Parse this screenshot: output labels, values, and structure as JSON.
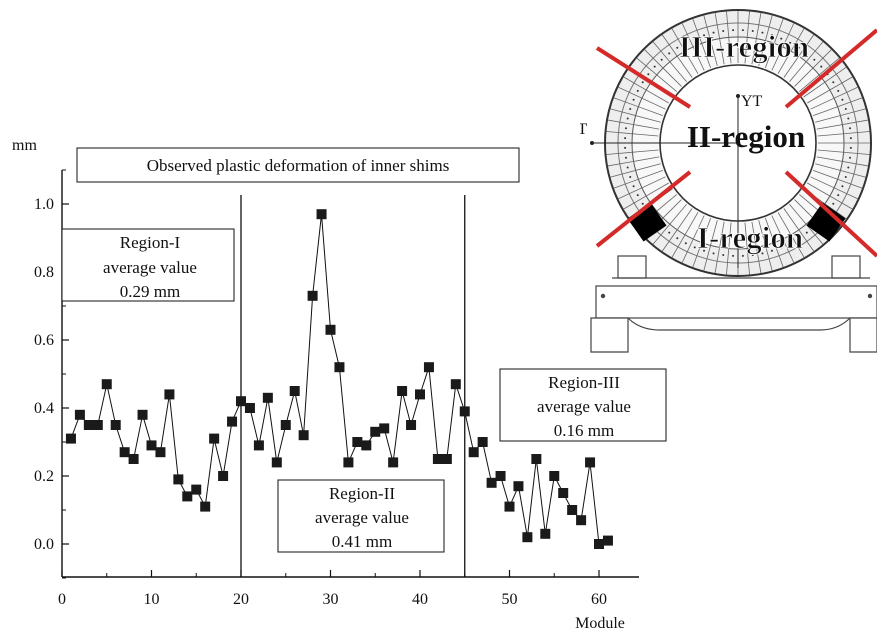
{
  "chart_data": {
    "type": "scatter",
    "title": "Observed plastic deformation of inner shims",
    "xlabel": "Module",
    "ylabel": "mm",
    "xlim": [
      0,
      64
    ],
    "ylim": [
      -0.1,
      1.1
    ],
    "x_ticks": [
      "0",
      "10",
      "20",
      "30",
      "40",
      "50",
      "60"
    ],
    "y_ticks": [
      "0.0",
      "0.2",
      "0.4",
      "0.6",
      "0.8",
      "1.0"
    ],
    "series": [
      {
        "x": [
          1,
          2,
          3,
          4,
          5,
          6,
          7,
          8,
          9,
          10,
          11,
          12,
          13,
          14,
          15,
          16,
          17,
          18,
          19,
          20,
          21,
          22,
          23,
          24,
          25,
          26,
          27,
          28,
          29,
          30,
          31,
          32,
          33,
          34,
          35,
          36,
          37,
          38,
          39,
          40,
          41,
          42,
          43,
          44,
          45,
          46,
          47,
          48,
          49,
          50,
          51,
          52,
          53,
          54,
          55,
          56,
          57,
          58,
          59,
          60,
          61
        ],
        "values": [
          0.31,
          0.38,
          0.35,
          0.35,
          0.47,
          0.35,
          0.27,
          0.25,
          0.38,
          0.29,
          0.27,
          0.44,
          0.19,
          0.14,
          0.16,
          0.11,
          0.31,
          0.2,
          0.36,
          0.42,
          0.4,
          0.29,
          0.43,
          0.24,
          0.35,
          0.45,
          0.32,
          0.73,
          0.97,
          0.63,
          0.52,
          0.24,
          0.3,
          0.29,
          0.33,
          0.34,
          0.24,
          0.45,
          0.35,
          0.44,
          0.52,
          0.25,
          0.25,
          0.47,
          0.39,
          0.27,
          0.3,
          0.18,
          0.2,
          0.11,
          0.17,
          0.02,
          0.25,
          0.03,
          0.2,
          0.15,
          0.1,
          0.07,
          0.24,
          0.0,
          0.01
        ]
      }
    ],
    "region_dividers": [
      20,
      45
    ],
    "annotations": [
      {
        "lines": [
          "Region-I",
          "average value",
          "0.29 mm"
        ]
      },
      {
        "lines": [
          "Region-II",
          "average value",
          "0.41 mm"
        ]
      },
      {
        "lines": [
          "Region-III",
          "average value",
          "0.16 mm"
        ]
      }
    ],
    "inset_labels": {
      "region3": "III-region",
      "region2": "II-region",
      "region1": "I-region",
      "yt": "YT",
      "xt": "XT"
    },
    "colors": {
      "marker": "#1a1a1a",
      "cross": "#d42a2a"
    }
  }
}
